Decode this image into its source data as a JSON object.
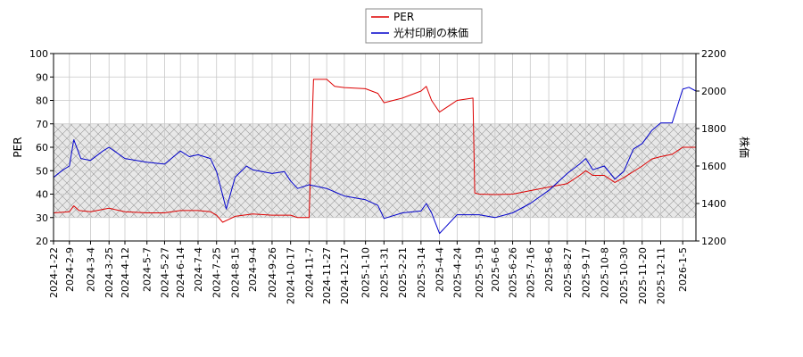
{
  "chart_data": {
    "type": "line",
    "title": "",
    "xlabel": "",
    "ylabel_left": "PER",
    "ylabel_right": "株価",
    "ylim_left": [
      20,
      100
    ],
    "ylim_right": [
      1200,
      2200
    ],
    "yticks_left": [
      20,
      30,
      40,
      50,
      60,
      70,
      80,
      90,
      100
    ],
    "yticks_right": [
      1200,
      1400,
      1600,
      1800,
      2000,
      2200
    ],
    "xlim": [
      "2024-01-22",
      "2026-01-20"
    ],
    "x_ticks": [
      "2024-1-22",
      "2024-2-9",
      "2024-3-4",
      "2024-3-25",
      "2024-4-12",
      "2024-5-7",
      "2024-5-27",
      "2024-6-14",
      "2024-7-4",
      "2024-7-25",
      "2024-8-15",
      "2024-9-4",
      "2024-9-26",
      "2024-10-17",
      "2024-11-7",
      "2024-11-27",
      "2024-12-17",
      "2025-1-10",
      "2025-1-31",
      "2025-2-21",
      "2025-3-14",
      "2025-4-4",
      "2025-4-24",
      "2025-5-19",
      "2025-6-6",
      "2025-6-26",
      "2025-7-16",
      "2025-8-6",
      "2025-8-27",
      "2025-9-17",
      "2025-10-8",
      "2025-10-30",
      "2025-11-20",
      "2025-12-11",
      "2026-1-5"
    ],
    "grid": true,
    "shaded_band_left": [
      30,
      70
    ],
    "legend_position": "top-center",
    "series": [
      {
        "name": "PER",
        "axis": "left",
        "color": "#dd0000",
        "points": [
          [
            "2024-01-22",
            32
          ],
          [
            "2024-02-09",
            32.5
          ],
          [
            "2024-02-14",
            35
          ],
          [
            "2024-02-20",
            33
          ],
          [
            "2024-03-04",
            32.5
          ],
          [
            "2024-03-25",
            34
          ],
          [
            "2024-04-12",
            32.5
          ],
          [
            "2024-05-07",
            32
          ],
          [
            "2024-05-27",
            32
          ],
          [
            "2024-06-14",
            33
          ],
          [
            "2024-07-04",
            33
          ],
          [
            "2024-07-18",
            32.5
          ],
          [
            "2024-07-25",
            31
          ],
          [
            "2024-08-01",
            28
          ],
          [
            "2024-08-15",
            30.5
          ],
          [
            "2024-09-04",
            31.5
          ],
          [
            "2024-09-26",
            31
          ],
          [
            "2024-10-17",
            31
          ],
          [
            "2024-10-25",
            30
          ],
          [
            "2024-11-07",
            30
          ],
          [
            "2024-11-12",
            89
          ],
          [
            "2024-11-27",
            89
          ],
          [
            "2024-12-06",
            86
          ],
          [
            "2024-12-17",
            85.5
          ],
          [
            "2025-01-10",
            85
          ],
          [
            "2025-01-24",
            83
          ],
          [
            "2025-01-31",
            79
          ],
          [
            "2025-02-21",
            81
          ],
          [
            "2025-03-14",
            84
          ],
          [
            "2025-03-20",
            86
          ],
          [
            "2025-03-26",
            80
          ],
          [
            "2025-04-04",
            75
          ],
          [
            "2025-04-16",
            78
          ],
          [
            "2025-04-24",
            80
          ],
          [
            "2025-05-12",
            81
          ],
          [
            "2025-05-14",
            40.5
          ],
          [
            "2025-05-19",
            40
          ],
          [
            "2025-06-06",
            39.8
          ],
          [
            "2025-06-26",
            40
          ],
          [
            "2025-07-16",
            41.5
          ],
          [
            "2025-08-06",
            43
          ],
          [
            "2025-08-27",
            44.5
          ],
          [
            "2025-09-10",
            48
          ],
          [
            "2025-09-17",
            50
          ],
          [
            "2025-09-25",
            48
          ],
          [
            "2025-10-08",
            48
          ],
          [
            "2025-10-20",
            45
          ],
          [
            "2025-10-30",
            47
          ],
          [
            "2025-11-20",
            52
          ],
          [
            "2025-12-01",
            55
          ],
          [
            "2025-12-11",
            56
          ],
          [
            "2025-12-24",
            57
          ],
          [
            "2026-01-05",
            60
          ],
          [
            "2026-01-20",
            60
          ]
        ]
      },
      {
        "name": "光村印刷の株価",
        "axis": "right",
        "color": "#0000cc",
        "points": [
          [
            "2024-01-22",
            1540
          ],
          [
            "2024-02-02",
            1580
          ],
          [
            "2024-02-09",
            1600
          ],
          [
            "2024-02-14",
            1740
          ],
          [
            "2024-02-22",
            1640
          ],
          [
            "2024-03-04",
            1630
          ],
          [
            "2024-03-18",
            1680
          ],
          [
            "2024-03-25",
            1700
          ],
          [
            "2024-04-12",
            1640
          ],
          [
            "2024-05-07",
            1620
          ],
          [
            "2024-05-27",
            1610
          ],
          [
            "2024-06-14",
            1680
          ],
          [
            "2024-06-24",
            1650
          ],
          [
            "2024-07-04",
            1660
          ],
          [
            "2024-07-18",
            1640
          ],
          [
            "2024-07-25",
            1570
          ],
          [
            "2024-08-05",
            1370
          ],
          [
            "2024-08-15",
            1540
          ],
          [
            "2024-08-28",
            1600
          ],
          [
            "2024-09-04",
            1580
          ],
          [
            "2024-09-26",
            1560
          ],
          [
            "2024-10-10",
            1570
          ],
          [
            "2024-10-17",
            1520
          ],
          [
            "2024-10-25",
            1480
          ],
          [
            "2024-11-07",
            1500
          ],
          [
            "2024-11-27",
            1480
          ],
          [
            "2024-12-17",
            1440
          ],
          [
            "2025-01-10",
            1420
          ],
          [
            "2025-01-24",
            1390
          ],
          [
            "2025-01-31",
            1320
          ],
          [
            "2025-02-21",
            1350
          ],
          [
            "2025-03-14",
            1360
          ],
          [
            "2025-03-20",
            1400
          ],
          [
            "2025-03-26",
            1350
          ],
          [
            "2025-04-04",
            1240
          ],
          [
            "2025-04-10",
            1270
          ],
          [
            "2025-04-24",
            1340
          ],
          [
            "2025-05-19",
            1340
          ],
          [
            "2025-06-06",
            1325
          ],
          [
            "2025-06-26",
            1350
          ],
          [
            "2025-07-16",
            1400
          ],
          [
            "2025-08-06",
            1470
          ],
          [
            "2025-08-27",
            1560
          ],
          [
            "2025-09-10",
            1610
          ],
          [
            "2025-09-17",
            1640
          ],
          [
            "2025-09-25",
            1580
          ],
          [
            "2025-10-08",
            1600
          ],
          [
            "2025-10-20",
            1530
          ],
          [
            "2025-10-30",
            1570
          ],
          [
            "2025-11-10",
            1690
          ],
          [
            "2025-11-20",
            1720
          ],
          [
            "2025-12-01",
            1790
          ],
          [
            "2025-12-11",
            1830
          ],
          [
            "2025-12-24",
            1830
          ],
          [
            "2026-01-05",
            2010
          ],
          [
            "2026-01-12",
            2020
          ],
          [
            "2026-01-20",
            2000
          ]
        ]
      }
    ]
  }
}
